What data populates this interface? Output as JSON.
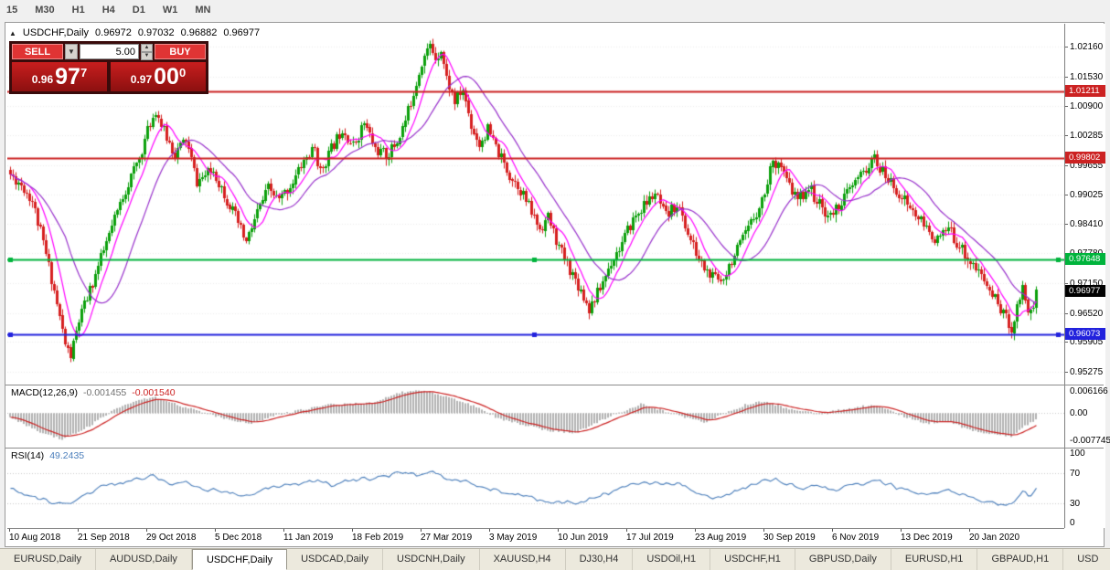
{
  "toolbar": {
    "timeframes": [
      "15",
      "M30",
      "H1",
      "H4",
      "D1",
      "W1",
      "MN"
    ]
  },
  "chart_header": {
    "toggle_icon": "▲",
    "symbol": "USDCHF,Daily",
    "open": "0.96972",
    "high": "0.97032",
    "low": "0.96882",
    "close": "0.96977"
  },
  "trade_panel": {
    "sell": "SELL",
    "buy": "BUY",
    "lot": "5.00",
    "drop_icon": "▼",
    "spin_up_icon": "▲",
    "spin_down_icon": "▼",
    "bid": {
      "prefix": "0.96",
      "big": "97",
      "sup": "7"
    },
    "ask": {
      "prefix": "0.97",
      "big": "00",
      "sup": "0"
    }
  },
  "indicators": {
    "macd": {
      "label": "MACD(12,26,9)",
      "main_value": "-0.001455",
      "signal_value": "-0.001540"
    },
    "rsi": {
      "label": "RSI(14)",
      "value": "49.2435"
    }
  },
  "tabs": {
    "active_index": 2,
    "items": [
      "EURUSD,Daily",
      "AUDUSD,Daily",
      "USDCHF,Daily",
      "USDCAD,Daily",
      "USDCNH,Daily",
      "XAUUSD,H4",
      "DJ30,H4",
      "USDOil,H1",
      "USDCHF,H1",
      "GBPUSD,Daily",
      "EURUSD,H1",
      "GBPAUD,H1",
      "USD"
    ]
  },
  "chart_data": {
    "type": "candlestick",
    "symbol": "USDCHF",
    "timeframe": "Daily",
    "visible_range": {
      "price_top": 1.0265,
      "price_bottom": 0.95,
      "bars": 375
    },
    "price_axis_ticks": [
      1.0216,
      1.0153,
      1.009,
      1.00285,
      0.99655,
      0.99025,
      0.9841,
      0.9778,
      0.9715,
      0.9652,
      0.95905,
      0.95275
    ],
    "x_labels": [
      "10 Aug 2018",
      "21 Sep 2018",
      "29 Oct 2018",
      "5 Dec 2018",
      "11 Jan 2019",
      "18 Feb 2019",
      "27 Mar 2019",
      "3 May 2019",
      "10 Jun 2019",
      "17 Jul 2019",
      "23 Aug 2019",
      "30 Sep 2019",
      "6 Nov 2019",
      "13 Dec 2019",
      "20 Jan 2020"
    ],
    "hlines": [
      {
        "value": 1.01211,
        "color": "#cc2222",
        "handles": false
      },
      {
        "value": 0.99802,
        "color": "#cc2222",
        "handles": false
      },
      {
        "value": 0.97648,
        "color": "#00b43c",
        "handles": true
      },
      {
        "value": 0.96073,
        "color": "#2222dd",
        "handles": true
      }
    ],
    "current_price": 0.96977,
    "candles": {
      "count": 375,
      "seed": 11,
      "noise": 0.0013,
      "wick": 0.0011,
      "close_waypoints": [
        [
          0,
          0.9945
        ],
        [
          4,
          0.9925
        ],
        [
          8,
          0.989
        ],
        [
          12,
          0.98
        ],
        [
          16,
          0.97
        ],
        [
          20,
          0.9585
        ],
        [
          22,
          0.956
        ],
        [
          25,
          0.9635
        ],
        [
          29,
          0.97
        ],
        [
          35,
          0.98
        ],
        [
          41,
          0.99
        ],
        [
          47,
          0.998
        ],
        [
          51,
          1.0055
        ],
        [
          53,
          1.0082
        ],
        [
          56,
          1.0035
        ],
        [
          60,
          0.999
        ],
        [
          64,
          1.002
        ],
        [
          68,
          0.993
        ],
        [
          74,
          0.9955
        ],
        [
          78,
          0.9905
        ],
        [
          82,
          0.9855
        ],
        [
          86,
          0.98
        ],
        [
          90,
          0.9865
        ],
        [
          94,
          0.9915
        ],
        [
          98,
          0.989
        ],
        [
          103,
          0.993
        ],
        [
          107,
          0.9975
        ],
        [
          111,
          1.0
        ],
        [
          113,
          0.995
        ],
        [
          117,
          1.0
        ],
        [
          121,
          1.0045
        ],
        [
          125,
          1.0005
        ],
        [
          129,
          1.0055
        ],
        [
          133,
          1.0
        ],
        [
          137,
          0.9985
        ],
        [
          141,
          1.0015
        ],
        [
          144,
          1.006
        ],
        [
          147,
          1.012
        ],
        [
          150,
          1.0185
        ],
        [
          153,
          1.0218
        ],
        [
          155,
          1.0195
        ],
        [
          157,
          1.0212
        ],
        [
          159,
          1.015
        ],
        [
          162,
          1.01
        ],
        [
          165,
          1.0125
        ],
        [
          168,
          1.005
        ],
        [
          171,
          1.001
        ],
        [
          174,
          1.004
        ],
        [
          178,
          0.999
        ],
        [
          182,
          0.9945
        ],
        [
          186,
          0.9915
        ],
        [
          190,
          0.9865
        ],
        [
          193,
          0.983
        ],
        [
          196,
          0.9855
        ],
        [
          200,
          0.979
        ],
        [
          204,
          0.9745
        ],
        [
          208,
          0.97
        ],
        [
          211,
          0.9662
        ],
        [
          215,
          0.9705
        ],
        [
          219,
          0.976
        ],
        [
          223,
          0.98
        ],
        [
          227,
          0.985
        ],
        [
          231,
          0.988
        ],
        [
          235,
          0.9905
        ],
        [
          239,
          0.9855
        ],
        [
          243,
          0.9885
        ],
        [
          247,
          0.982
        ],
        [
          251,
          0.9765
        ],
        [
          255,
          0.973
        ],
        [
          259,
          0.972
        ],
        [
          263,
          0.9765
        ],
        [
          267,
          0.9805
        ],
        [
          271,
          0.9855
        ],
        [
          275,
          0.9905
        ],
        [
          277,
          0.996
        ],
        [
          280,
          0.9978
        ],
        [
          283,
          0.993
        ],
        [
          287,
          0.989
        ],
        [
          291,
          0.992
        ],
        [
          295,
          0.988
        ],
        [
          299,
          0.9855
        ],
        [
          303,
          0.989
        ],
        [
          307,
          0.992
        ],
        [
          311,
          0.995
        ],
        [
          315,
          0.9978
        ],
        [
          318,
          0.995
        ],
        [
          322,
          0.992
        ],
        [
          326,
          0.989
        ],
        [
          330,
          0.986
        ],
        [
          334,
          0.983
        ],
        [
          338,
          0.9805
        ],
        [
          342,
          0.983
        ],
        [
          346,
          0.9795
        ],
        [
          350,
          0.976
        ],
        [
          354,
          0.973
        ],
        [
          357,
          0.97
        ],
        [
          360,
          0.9672
        ],
        [
          363,
          0.964
        ],
        [
          365,
          0.9618
        ],
        [
          367,
          0.9665
        ],
        [
          369,
          0.9712
        ],
        [
          371,
          0.9655
        ],
        [
          373,
          0.9668
        ],
        [
          374,
          0.9698
        ]
      ]
    },
    "ma_fast": {
      "period": 8,
      "color": "#ff00ff"
    },
    "ma_slow": {
      "period": 21,
      "color": "#9932cc"
    },
    "colors": {
      "up": "#0ca00c",
      "down": "#d62020",
      "grid": "#ededed",
      "separator": "#8c8c8c"
    },
    "macd": {
      "axis": [
        [
          0.006166,
          "0.006166"
        ],
        [
          0,
          "0.00"
        ],
        [
          -0.007745,
          "-0.007745"
        ]
      ],
      "range": {
        "max": 0.006166,
        "min": -0.007745
      },
      "hist_color": "#b2b2b2",
      "signal_color": "#cc2222",
      "signal_period": 9,
      "waypoints": [
        [
          0,
          -0.001
        ],
        [
          10,
          -0.0042
        ],
        [
          19,
          -0.0062
        ],
        [
          29,
          -0.003
        ],
        [
          39,
          0.0012
        ],
        [
          52,
          0.004
        ],
        [
          62,
          0.0018
        ],
        [
          78,
          -0.0012
        ],
        [
          88,
          -0.0026
        ],
        [
          97,
          -0.0004
        ],
        [
          117,
          0.0021
        ],
        [
          131,
          0.0024
        ],
        [
          143,
          0.005
        ],
        [
          151,
          0.0054
        ],
        [
          160,
          0.0038
        ],
        [
          170,
          0.0015
        ],
        [
          178,
          -0.0012
        ],
        [
          195,
          -0.004
        ],
        [
          206,
          -0.0047
        ],
        [
          218,
          -0.001
        ],
        [
          230,
          0.0022
        ],
        [
          243,
          -0.0004
        ],
        [
          253,
          -0.0022
        ],
        [
          268,
          0.002
        ],
        [
          275,
          0.0028
        ],
        [
          285,
          0.0008
        ],
        [
          295,
          -0.0002
        ],
        [
          306,
          0.0012
        ],
        [
          315,
          0.002
        ],
        [
          325,
          -0.0006
        ],
        [
          334,
          -0.0024
        ],
        [
          342,
          -0.002
        ],
        [
          350,
          -0.004
        ],
        [
          358,
          -0.005
        ],
        [
          365,
          -0.0055
        ],
        [
          370,
          -0.003
        ],
        [
          374,
          -0.001455
        ]
      ]
    },
    "rsi": {
      "levels": [
        [
          100,
          "100"
        ],
        [
          70,
          "70"
        ],
        [
          30,
          "30"
        ],
        [
          0,
          "0"
        ]
      ],
      "dotted_levels": [
        70,
        30
      ],
      "color": "#4a7ebb",
      "waypoints": [
        [
          0,
          48
        ],
        [
          8,
          39
        ],
        [
          14,
          32
        ],
        [
          19,
          27
        ],
        [
          25,
          38
        ],
        [
          33,
          52
        ],
        [
          43,
          60
        ],
        [
          52,
          67
        ],
        [
          58,
          55
        ],
        [
          64,
          58
        ],
        [
          70,
          50
        ],
        [
          78,
          44
        ],
        [
          86,
          40
        ],
        [
          94,
          52
        ],
        [
          103,
          56
        ],
        [
          111,
          58
        ],
        [
          117,
          55
        ],
        [
          125,
          60
        ],
        [
          136,
          66
        ],
        [
          143,
          72
        ],
        [
          148,
          69
        ],
        [
          153,
          73
        ],
        [
          158,
          62
        ],
        [
          165,
          58
        ],
        [
          171,
          52
        ],
        [
          178,
          45
        ],
        [
          186,
          40
        ],
        [
          195,
          34
        ],
        [
          206,
          29
        ],
        [
          214,
          40
        ],
        [
          222,
          50
        ],
        [
          230,
          58
        ],
        [
          237,
          54
        ],
        [
          243,
          57
        ],
        [
          249,
          45
        ],
        [
          255,
          38
        ],
        [
          261,
          42
        ],
        [
          268,
          52
        ],
        [
          275,
          63
        ],
        [
          281,
          58
        ],
        [
          287,
          50
        ],
        [
          293,
          53
        ],
        [
          299,
          48
        ],
        [
          307,
          54
        ],
        [
          315,
          61
        ],
        [
          322,
          52
        ],
        [
          330,
          45
        ],
        [
          336,
          42
        ],
        [
          342,
          47
        ],
        [
          348,
          38
        ],
        [
          354,
          34
        ],
        [
          360,
          30
        ],
        [
          365,
          27
        ],
        [
          369,
          48
        ],
        [
          371,
          40
        ],
        [
          374,
          49.24
        ]
      ]
    }
  }
}
